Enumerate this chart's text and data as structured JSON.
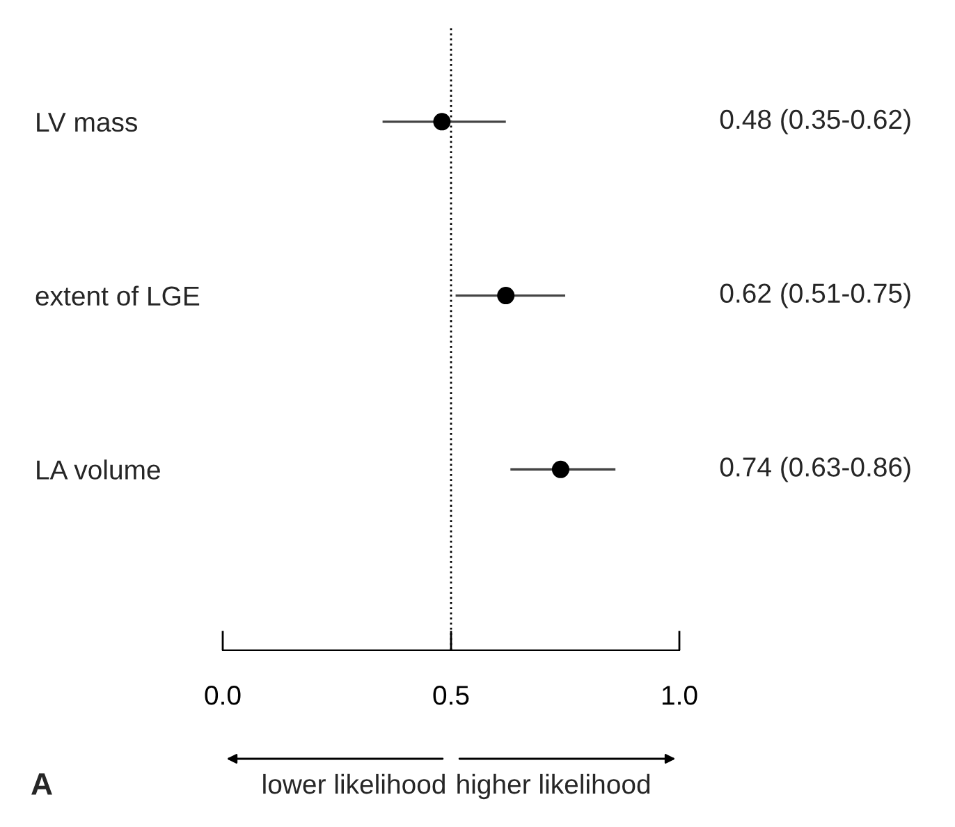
{
  "chart_data": {
    "type": "scatter",
    "orientation": "horizontal",
    "categories": [
      "LV mass",
      "extent of LGE",
      "LA volume"
    ],
    "values": [
      0.48,
      0.62,
      0.74
    ],
    "errors": [
      [
        0.35,
        0.62
      ],
      [
        0.51,
        0.75
      ],
      [
        0.63,
        0.86
      ]
    ],
    "value_labels": [
      "0.48 (0.35-0.62)",
      "0.62 (0.51-0.75)",
      "0.74 (0.63-0.86)"
    ],
    "color": "#000000",
    "marker": "circle",
    "xlim": [
      0,
      1
    ],
    "xticks": [
      {
        "value": 0,
        "label": "0.0"
      },
      {
        "value": 0.5,
        "label": "0.5"
      },
      {
        "value": 1,
        "label": "1.0"
      }
    ],
    "ref_lines": [
      {
        "axis": "x",
        "value": 0.5,
        "line_style": "dotted",
        "color": "#000000"
      }
    ],
    "annotations": [
      "A",
      "lower likelihood",
      "higher likelihood"
    ],
    "grid": false,
    "legend": false
  }
}
